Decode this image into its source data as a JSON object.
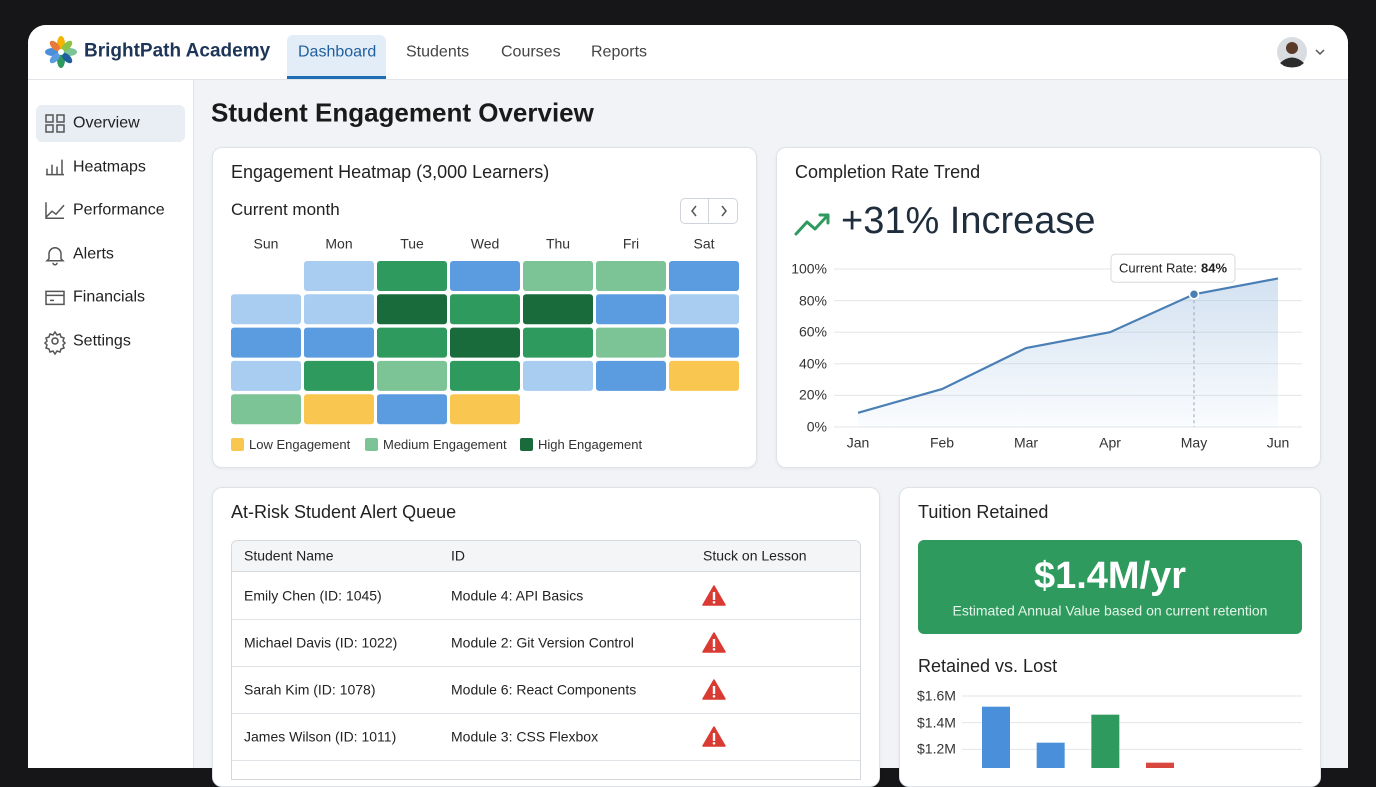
{
  "header": {
    "brand": "BrightPath Academy",
    "tabs": [
      {
        "label": "Dashboard",
        "active": true
      },
      {
        "label": "Students",
        "active": false
      },
      {
        "label": "Courses",
        "active": false
      },
      {
        "label": "Reports",
        "active": false
      }
    ]
  },
  "sidebar": [
    {
      "label": "Overview",
      "active": true
    },
    {
      "label": "Heatmaps",
      "active": false
    },
    {
      "label": "Performance",
      "active": false
    },
    {
      "label": "Alerts",
      "active": false
    },
    {
      "label": "Financials",
      "active": false
    },
    {
      "label": "Settings",
      "active": false
    }
  ],
  "page_title": "Student Engagement Overview",
  "heatmap": {
    "title": "Engagement Heatmap (3,000 Learners)",
    "subtitle": "Current month",
    "days": [
      "Sun",
      "Mon",
      "Tue",
      "Wed",
      "Thu",
      "Fri",
      "Sat"
    ],
    "weeks": [
      [
        null,
        "#a8cdf0",
        "#2e9a5e",
        "#5b9be0",
        "#7cc496",
        "#7cc496",
        "#5b9be0"
      ],
      [
        "#a8cdf0",
        "#a8cdf0",
        "#1a6b3c",
        "#2e9a5e",
        "#1a6b3c",
        "#5b9be0",
        "#a8cdf0"
      ],
      [
        "#5b9be0",
        "#5b9be0",
        "#2e9a5e",
        "#1a6b3c",
        "#2e9a5e",
        "#7cc496",
        "#5b9be0"
      ],
      [
        "#a8cdf0",
        "#2e9a5e",
        "#7cc496",
        "#2e9a5e",
        "#a8cdf0",
        "#5b9be0",
        "#f9c74f"
      ],
      [
        "#7cc496",
        "#f9c74f",
        "#5b9be0",
        "#f9c74f",
        null,
        null,
        null
      ]
    ],
    "legend": [
      {
        "label": "Low Engagement",
        "color": "#f9c74f"
      },
      {
        "label": "Medium Engagement",
        "color": "#7cc496"
      },
      {
        "label": "High Engagement",
        "color": "#1a6b3c"
      }
    ]
  },
  "completion": {
    "title": "Completion Rate Trend",
    "headline": "+31% Increase"
  },
  "alerts": {
    "title": "At-Risk Student Alert Queue",
    "columns": [
      "Student Name",
      "ID",
      "Stuck on Lesson"
    ],
    "rows": [
      [
        "Emily Chen (ID: 1045)",
        "Module 4: API Basics"
      ],
      [
        "Michael Davis (ID: 1022)",
        "Module 2: Git Version Control"
      ],
      [
        "Sarah Kim (ID: 1078)",
        "Module 6: React Components"
      ],
      [
        "James Wilson (ID: 1011)",
        "Module 3: CSS Flexbox"
      ]
    ]
  },
  "tuition": {
    "title": "Tuition Retained",
    "value": "$1.4M/yr",
    "caption": "Estimated Annual Value based on current retention",
    "chart_title": "Retained vs. Lost"
  },
  "chart_data": [
    {
      "type": "line",
      "categories": [
        "Jan",
        "Feb",
        "Mar",
        "Apr",
        "May",
        "Jun"
      ],
      "values": [
        9,
        24,
        50,
        60,
        84,
        94
      ],
      "value_labels": [
        null,
        null,
        null,
        null,
        "84%",
        null
      ],
      "tooltip_label": "Current Rate:",
      "color": "#4a7fb5",
      "ylim": [
        0,
        100
      ],
      "yticks": [
        {
          "value": 0,
          "label": "0%"
        },
        {
          "value": 20,
          "label": "20%"
        },
        {
          "value": 40,
          "label": "40%"
        },
        {
          "value": 60,
          "label": "60%"
        },
        {
          "value": 80,
          "label": "80%"
        },
        {
          "value": 100,
          "label": "100%"
        }
      ],
      "grid": true
    },
    {
      "type": "bar",
      "categories": [
        null,
        null,
        null,
        null
      ],
      "values": [
        1520000,
        1250000,
        1460000,
        1100000
      ],
      "colors": [
        "#4a8fd9",
        "#4a8fd9",
        "#2e9a5e",
        "#d9463e"
      ],
      "ylim": [
        1060000,
        1600000
      ],
      "yticks": [
        {
          "value": 1200000,
          "label": "$1.2M"
        },
        {
          "value": 1400000,
          "label": "$1.4M"
        },
        {
          "value": 1600000,
          "label": "$1.6M"
        }
      ],
      "grid": true
    }
  ]
}
